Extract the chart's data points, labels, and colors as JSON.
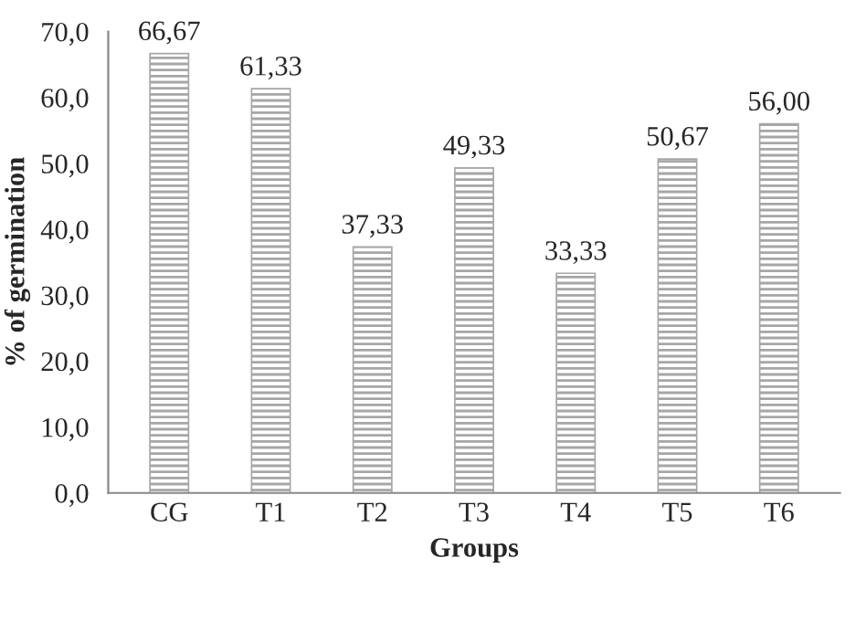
{
  "chart_data": {
    "type": "bar",
    "xlabel": "Groups",
    "ylabel": "% of germination",
    "categories": [
      "CG",
      "T1",
      "T2",
      "T3",
      "T4",
      "T5",
      "T6"
    ],
    "values": [
      66.67,
      61.33,
      37.33,
      49.33,
      33.33,
      50.67,
      56.0
    ],
    "value_labels": [
      "66,67",
      "61,33",
      "37,33",
      "49,33",
      "33,33",
      "50,67",
      "56,00"
    ],
    "color": "#a6a6a6",
    "ylim": [
      0,
      70
    ],
    "yticks": [
      {
        "value": 0,
        "label": "0,0"
      },
      {
        "value": 10,
        "label": "10,0"
      },
      {
        "value": 20,
        "label": "20,0"
      },
      {
        "value": 30,
        "label": "30,0"
      },
      {
        "value": 40,
        "label": "40,0"
      },
      {
        "value": 50,
        "label": "50,0"
      },
      {
        "value": 60,
        "label": "60,0"
      },
      {
        "value": 70,
        "label": "70,0"
      }
    ],
    "grid": false,
    "legend": false
  }
}
